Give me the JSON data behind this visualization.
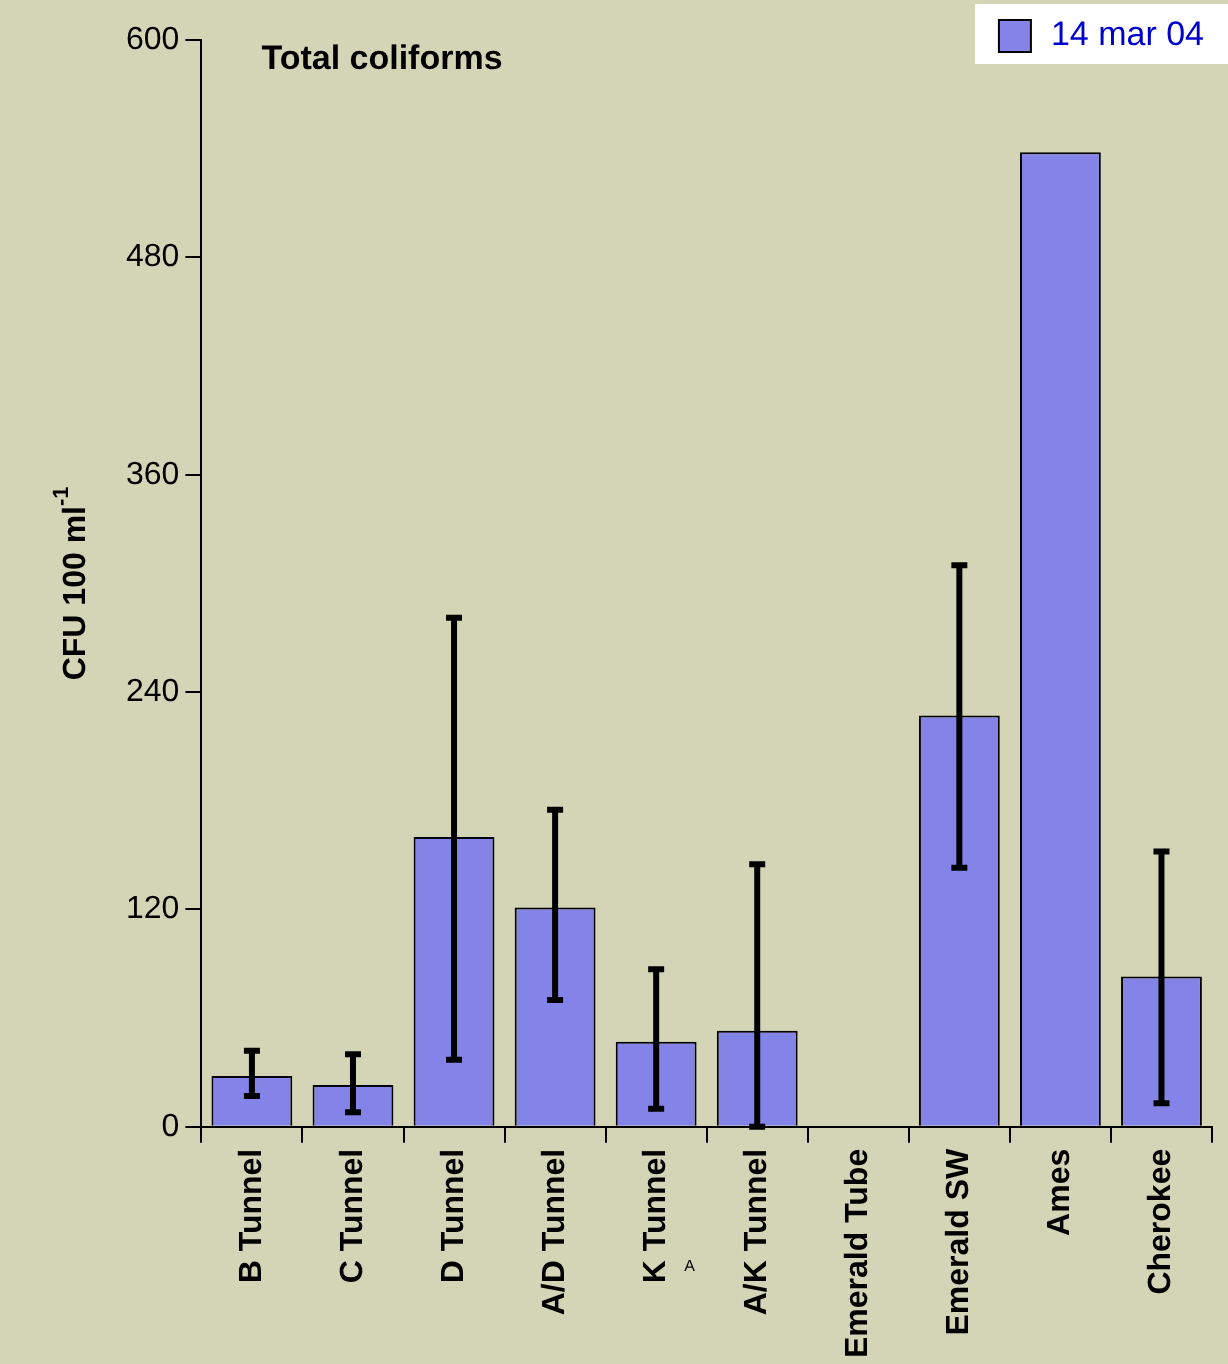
{
  "chart_data": {
    "type": "bar",
    "title": "Total coliforms",
    "ylabel": "CFU 100 ml$^{-1}$",
    "categories": [
      "B Tunnel",
      "C Tunnel",
      "D Tunnel",
      "A/D Tunnel",
      "K Tunnel",
      "A/K Tunnel",
      "Emerald Tube",
      "Emerald SW",
      "Ames",
      "Cherokee"
    ],
    "series": [
      {
        "name": "14 mar 04",
        "color": "#8484e8",
        "values": [
          28,
          23,
          160,
          121,
          47,
          53,
          null,
          227,
          538,
          83
        ],
        "errors": [
          [
            17,
            42
          ],
          [
            8,
            40
          ],
          [
            37,
            281
          ],
          [
            70,
            175
          ],
          [
            10,
            87
          ],
          [
            0,
            145
          ],
          null,
          [
            143,
            310
          ],
          null,
          [
            13,
            152
          ]
        ]
      }
    ],
    "ylim": [
      0,
      600
    ],
    "yticks": [
      0,
      120,
      240,
      360,
      480,
      600
    ],
    "grid": false,
    "legend": "top right",
    "annotations": [
      "A"
    ]
  }
}
